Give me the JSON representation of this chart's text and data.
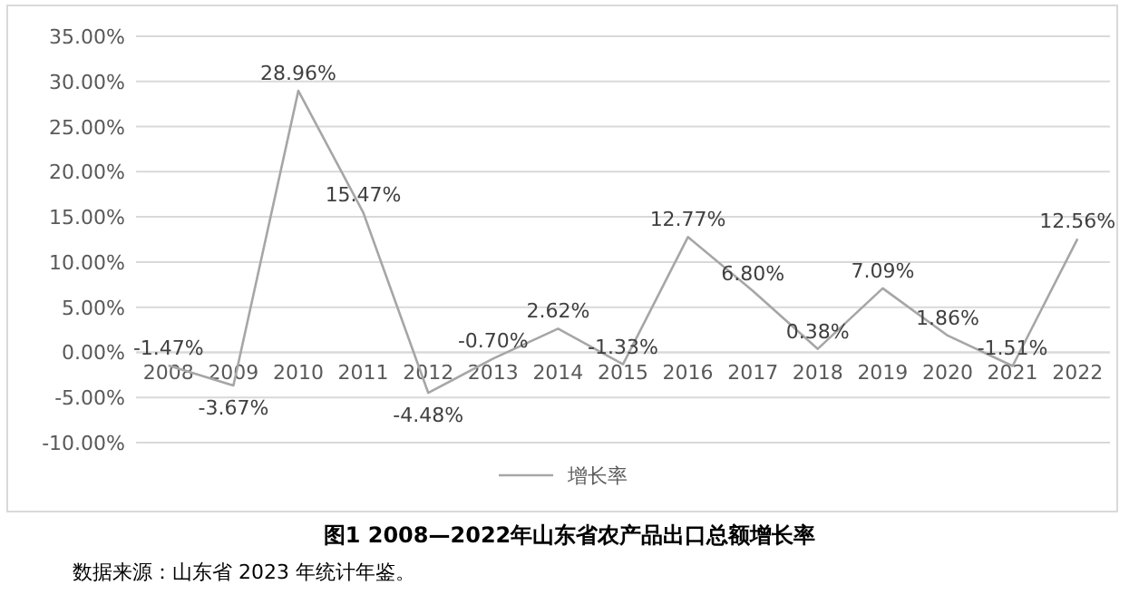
{
  "chart_data": {
    "type": "line",
    "title": "图1 2008—2022年山东省农产品出口总额增长率",
    "categories": [
      "2008",
      "2009",
      "2010",
      "2011",
      "2012",
      "2013",
      "2014",
      "2015",
      "2016",
      "2017",
      "2018",
      "2019",
      "2020",
      "2021",
      "2022"
    ],
    "series": [
      {
        "name": "增长率",
        "color": "#a6a6a6",
        "values": [
          -1.47,
          -3.67,
          28.96,
          15.47,
          -4.48,
          -0.7,
          2.62,
          -1.33,
          12.77,
          6.8,
          0.38,
          7.09,
          1.86,
          -1.51,
          12.56
        ],
        "value_labels": [
          "-1.47%",
          "-3.67%",
          "28.96%",
          "15.47%",
          "-4.48%",
          "-0.70%",
          "2.62%",
          "-1.33%",
          "12.77%",
          "6.80%",
          "0.38%",
          "7.09%",
          "1.86%",
          "-1.51%",
          "12.56%"
        ]
      }
    ],
    "ylim": [
      -10,
      35
    ],
    "yticks": [
      {
        "value": -10,
        "label": "-10.00%"
      },
      {
        "value": -5,
        "label": "-5.00%"
      },
      {
        "value": 0,
        "label": "0.00%"
      },
      {
        "value": 5,
        "label": "5.00%"
      },
      {
        "value": 10,
        "label": "10.00%"
      },
      {
        "value": 15,
        "label": "15.00%"
      },
      {
        "value": 20,
        "label": "20.00%"
      },
      {
        "value": 25,
        "label": "25.00%"
      },
      {
        "value": 30,
        "label": "30.00%"
      },
      {
        "value": 35,
        "label": "35.00%"
      }
    ],
    "grid": "y",
    "legend": "bottom",
    "marker": "none",
    "line_style": "solid",
    "annotations": [
      "数据来源：山东省 2023 年统计年鉴。"
    ]
  }
}
